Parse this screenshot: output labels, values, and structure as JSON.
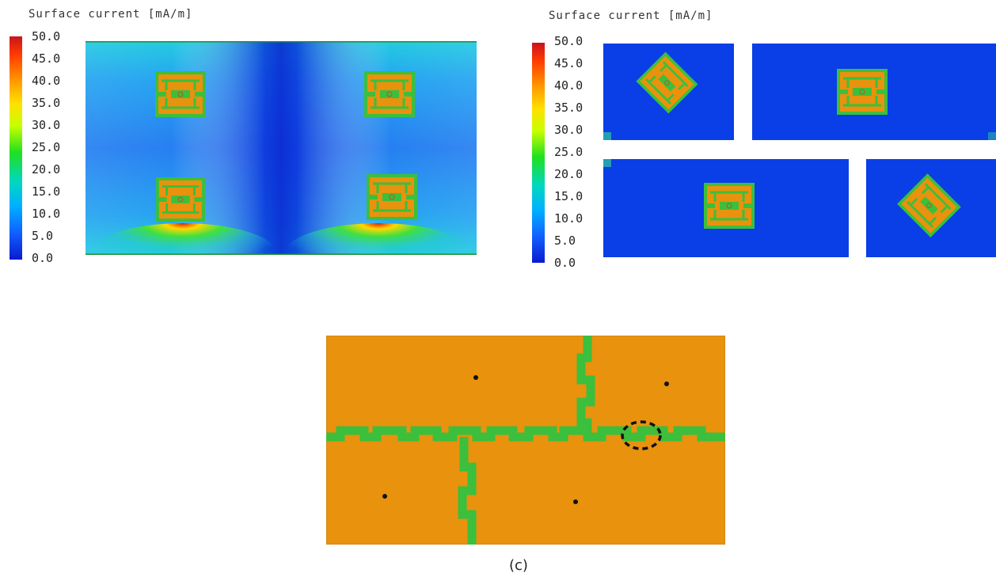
{
  "panel_a": {
    "title": "Surface current [mA/m]",
    "colorbar_ticks": [
      "50.0",
      "45.0",
      "40.0",
      "35.0",
      "30.0",
      "25.0",
      "20.0",
      "15.0",
      "10.0",
      "5.0",
      "0.0"
    ]
  },
  "panel_b": {
    "title": "Surface current [mA/m]",
    "colorbar_ticks": [
      "50.0",
      "45.0",
      "40.0",
      "35.0",
      "30.0",
      "25.0",
      "20.0",
      "15.0",
      "10.0",
      "5.0",
      "0.0"
    ]
  },
  "panel_c": {
    "caption": "(c)"
  },
  "colors": {
    "copper": "#e8920e",
    "slot_green": "#3cbf3c",
    "low_field": "#0a3ee6",
    "high_field": "#d81e10"
  },
  "icons": [
    "antenna-element-icon",
    "feed-point-icon",
    "highlight-circle-icon"
  ]
}
